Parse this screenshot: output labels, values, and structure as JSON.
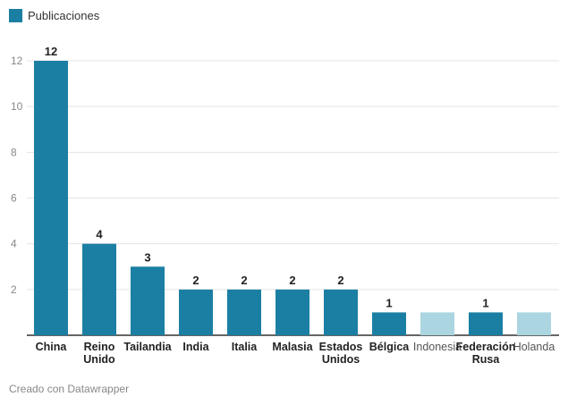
{
  "chart_data": {
    "type": "bar",
    "categories": [
      "China",
      "Reino Unido",
      "Tailandia",
      "India",
      "Italia",
      "Malasia",
      "Estados Unidos",
      "Bélgica",
      "Indonesia",
      "Federación Rusa",
      "Holanda"
    ],
    "values": [
      12,
      4,
      3,
      2,
      2,
      2,
      2,
      1,
      1,
      1,
      1
    ],
    "data_labels": [
      "12",
      "4",
      "3",
      "2",
      "2",
      "2",
      "2",
      "1",
      "",
      "1",
      ""
    ],
    "highlighted": [
      true,
      true,
      true,
      true,
      true,
      true,
      true,
      true,
      false,
      true,
      false
    ],
    "series": [
      {
        "name": "Publicaciones",
        "values": [
          12,
          4,
          3,
          2,
          2,
          2,
          2,
          1,
          1,
          1,
          1
        ]
      }
    ],
    "ylim": [
      0,
      12
    ],
    "yticks": [
      2,
      4,
      6,
      8,
      10,
      12
    ],
    "grid": true,
    "legend": "top-left",
    "colors": {
      "primary": "#1b7fa3",
      "muted": "#abd5e0"
    }
  },
  "legend": {
    "label": "Publicaciones"
  },
  "footer": {
    "credit": "Creado con Datawrapper"
  }
}
